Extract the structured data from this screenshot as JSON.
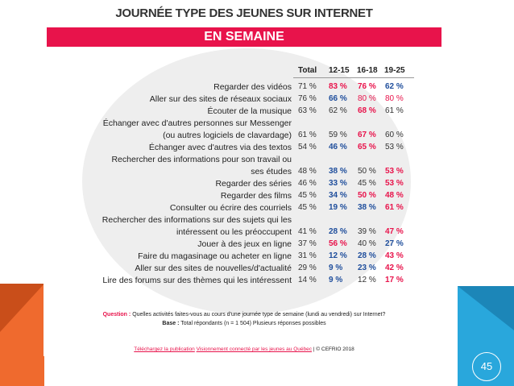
{
  "slide": {
    "number": "45"
  },
  "title": "JOURNÉE TYPE DES JEUNES SUR INTERNET",
  "banner": "EN SEMAINE",
  "colors": {
    "red": "#e8134b",
    "blue": "#1f4e9c",
    "gray": "#333333"
  },
  "headers": [
    "Total",
    "12-15",
    "16-18",
    "19-25"
  ],
  "rows": [
    {
      "label": [
        "Regarder des vidéos"
      ],
      "values": [
        {
          "text": "71 %",
          "color": "gray",
          "bold": false
        },
        {
          "text": "83 %",
          "color": "red",
          "bold": true
        },
        {
          "text": "76 %",
          "color": "red",
          "bold": true
        },
        {
          "text": "62 %",
          "color": "blue",
          "bold": true
        }
      ]
    },
    {
      "label": [
        "Aller sur des sites de réseaux sociaux"
      ],
      "values": [
        {
          "text": "76 %",
          "color": "gray",
          "bold": false
        },
        {
          "text": "66 %",
          "color": "blue",
          "bold": true
        },
        {
          "text": "80 %",
          "color": "red",
          "bold": false
        },
        {
          "text": "80 %",
          "color": "red",
          "bold": false
        }
      ]
    },
    {
      "label": [
        "Écouter de la musique"
      ],
      "values": [
        {
          "text": "63 %",
          "color": "gray",
          "bold": false
        },
        {
          "text": "62 %",
          "color": "gray",
          "bold": false
        },
        {
          "text": "68 %",
          "color": "red",
          "bold": true
        },
        {
          "text": "61 %",
          "color": "gray",
          "bold": false
        }
      ]
    },
    {
      "label": [
        "Échanger avec d'autres personnes sur Messenger",
        "(ou autres logiciels de clavardage)"
      ],
      "values": [
        {
          "text": "61 %",
          "color": "gray",
          "bold": false
        },
        {
          "text": "59 %",
          "color": "gray",
          "bold": false
        },
        {
          "text": "67 %",
          "color": "red",
          "bold": true
        },
        {
          "text": "60 %",
          "color": "gray",
          "bold": false
        }
      ]
    },
    {
      "label": [
        "Échanger avec d'autres via des textos"
      ],
      "values": [
        {
          "text": "54 %",
          "color": "gray",
          "bold": false
        },
        {
          "text": "46 %",
          "color": "blue",
          "bold": true
        },
        {
          "text": "65 %",
          "color": "red",
          "bold": true
        },
        {
          "text": "53 %",
          "color": "gray",
          "bold": false
        }
      ]
    },
    {
      "label": [
        "Rechercher des informations pour son travail ou",
        "ses études"
      ],
      "values": [
        {
          "text": "48 %",
          "color": "gray",
          "bold": false
        },
        {
          "text": "38 %",
          "color": "blue",
          "bold": true
        },
        {
          "text": "50 %",
          "color": "gray",
          "bold": false
        },
        {
          "text": "53 %",
          "color": "red",
          "bold": true
        }
      ]
    },
    {
      "label": [
        "Regarder des séries"
      ],
      "values": [
        {
          "text": "46 %",
          "color": "gray",
          "bold": false
        },
        {
          "text": "33 %",
          "color": "blue",
          "bold": true
        },
        {
          "text": "45 %",
          "color": "gray",
          "bold": false
        },
        {
          "text": "53 %",
          "color": "red",
          "bold": true
        }
      ]
    },
    {
      "label": [
        "Regarder des films"
      ],
      "values": [
        {
          "text": "45 %",
          "color": "gray",
          "bold": false
        },
        {
          "text": "34 %",
          "color": "blue",
          "bold": true
        },
        {
          "text": "50 %",
          "color": "red",
          "bold": true
        },
        {
          "text": "48 %",
          "color": "red",
          "bold": true
        }
      ]
    },
    {
      "label": [
        "Consulter ou écrire des courriels"
      ],
      "values": [
        {
          "text": "45 %",
          "color": "gray",
          "bold": false
        },
        {
          "text": "19 %",
          "color": "blue",
          "bold": true
        },
        {
          "text": "38 %",
          "color": "blue",
          "bold": true
        },
        {
          "text": "61 %",
          "color": "red",
          "bold": true
        }
      ]
    },
    {
      "label": [
        "Rechercher des informations sur des sujets qui les",
        "intéressent ou les préoccupent"
      ],
      "values": [
        {
          "text": "41 %",
          "color": "gray",
          "bold": false
        },
        {
          "text": "28 %",
          "color": "blue",
          "bold": true
        },
        {
          "text": "39 %",
          "color": "gray",
          "bold": false
        },
        {
          "text": "47 %",
          "color": "red",
          "bold": true
        }
      ]
    },
    {
      "label": [
        "Jouer à des jeux en ligne"
      ],
      "values": [
        {
          "text": "37 %",
          "color": "gray",
          "bold": false
        },
        {
          "text": "56 %",
          "color": "red",
          "bold": true
        },
        {
          "text": "40 %",
          "color": "gray",
          "bold": false
        },
        {
          "text": "27 %",
          "color": "blue",
          "bold": true
        }
      ]
    },
    {
      "label": [
        "Faire du magasinage ou acheter en ligne"
      ],
      "values": [
        {
          "text": "31 %",
          "color": "gray",
          "bold": false
        },
        {
          "text": "12 %",
          "color": "blue",
          "bold": true
        },
        {
          "text": "28 %",
          "color": "blue",
          "bold": true
        },
        {
          "text": "43 %",
          "color": "red",
          "bold": true
        }
      ]
    },
    {
      "label": [
        "Aller sur des sites de nouvelles/d'actualité"
      ],
      "values": [
        {
          "text": "29 %",
          "color": "gray",
          "bold": false
        },
        {
          "text": "9 %",
          "color": "blue",
          "bold": true
        },
        {
          "text": "23 %",
          "color": "blue",
          "bold": true
        },
        {
          "text": "42 %",
          "color": "red",
          "bold": true
        }
      ]
    },
    {
      "label": [
        "Lire des forums sur des thèmes qui les intéressent"
      ],
      "values": [
        {
          "text": "14 %",
          "color": "gray",
          "bold": false
        },
        {
          "text": "9 %",
          "color": "blue",
          "bold": true
        },
        {
          "text": "12 %",
          "color": "gray",
          "bold": false
        },
        {
          "text": "17 %",
          "color": "red",
          "bold": true
        }
      ]
    }
  ],
  "question": {
    "label": "Question :",
    "text": "Quelles activités faites-vous au cours d'une journée type de semaine (lundi au vendredi) sur Internet?"
  },
  "base": {
    "label": "Base :",
    "text": "Total répondants (n = 1 504) Plusieurs réponses possibles"
  },
  "footer": {
    "prefix": "Téléchargez la publication",
    "link": "Visionnement connecté par les jeunes au Québec",
    "suffix": "| © CEFRIO 2018"
  }
}
